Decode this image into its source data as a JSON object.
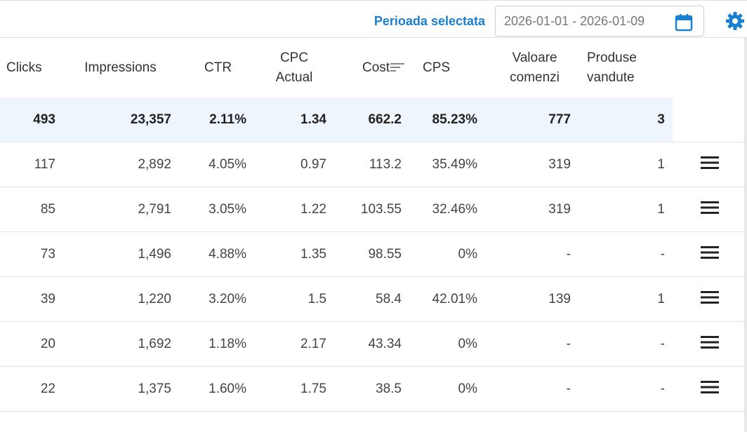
{
  "header": {
    "period_label": "Perioada selectata",
    "date_range": "2026-01-01 - 2026-01-09"
  },
  "icons": {
    "calendar": "calendar-icon",
    "settings": "gear-icon",
    "sort": "sort-icon",
    "row_menu": "hamburger-menu-icon"
  },
  "colors": {
    "accent": "#1a7fd0",
    "totals_row_bg": "#eef5fc"
  },
  "table": {
    "columns": [
      {
        "key": "clicks",
        "label": "Clicks"
      },
      {
        "key": "impressions",
        "label": "Impressions"
      },
      {
        "key": "ctr",
        "label": "CTR"
      },
      {
        "key": "cpc",
        "label": "CPC Actual"
      },
      {
        "key": "cost",
        "label": "Cost"
      },
      {
        "key": "cps",
        "label": "CPS"
      },
      {
        "key": "valoare",
        "label": "Valoare comenzi"
      },
      {
        "key": "produse",
        "label": "Produse vandute"
      }
    ],
    "totals": {
      "clicks": "493",
      "impressions": "23,357",
      "ctr": "2.11%",
      "cpc": "1.34",
      "cost": "662.2",
      "cps": "85.23%",
      "valoare": "777",
      "produse": "3"
    },
    "rows": [
      {
        "clicks": "117",
        "impressions": "2,892",
        "ctr": "4.05%",
        "cpc": "0.97",
        "cost": "113.2",
        "cps": "35.49%",
        "valoare": "319",
        "produse": "1"
      },
      {
        "clicks": "85",
        "impressions": "2,791",
        "ctr": "3.05%",
        "cpc": "1.22",
        "cost": "103.55",
        "cps": "32.46%",
        "valoare": "319",
        "produse": "1"
      },
      {
        "clicks": "73",
        "impressions": "1,496",
        "ctr": "4.88%",
        "cpc": "1.35",
        "cost": "98.55",
        "cps": "0%",
        "valoare": "-",
        "produse": "-"
      },
      {
        "clicks": "39",
        "impressions": "1,220",
        "ctr": "3.20%",
        "cpc": "1.5",
        "cost": "58.4",
        "cps": "42.01%",
        "valoare": "139",
        "produse": "1"
      },
      {
        "clicks": "20",
        "impressions": "1,692",
        "ctr": "1.18%",
        "cpc": "2.17",
        "cost": "43.34",
        "cps": "0%",
        "valoare": "-",
        "produse": "-"
      },
      {
        "clicks": "22",
        "impressions": "1,375",
        "ctr": "1.60%",
        "cpc": "1.75",
        "cost": "38.5",
        "cps": "0%",
        "valoare": "-",
        "produse": "-"
      }
    ]
  }
}
